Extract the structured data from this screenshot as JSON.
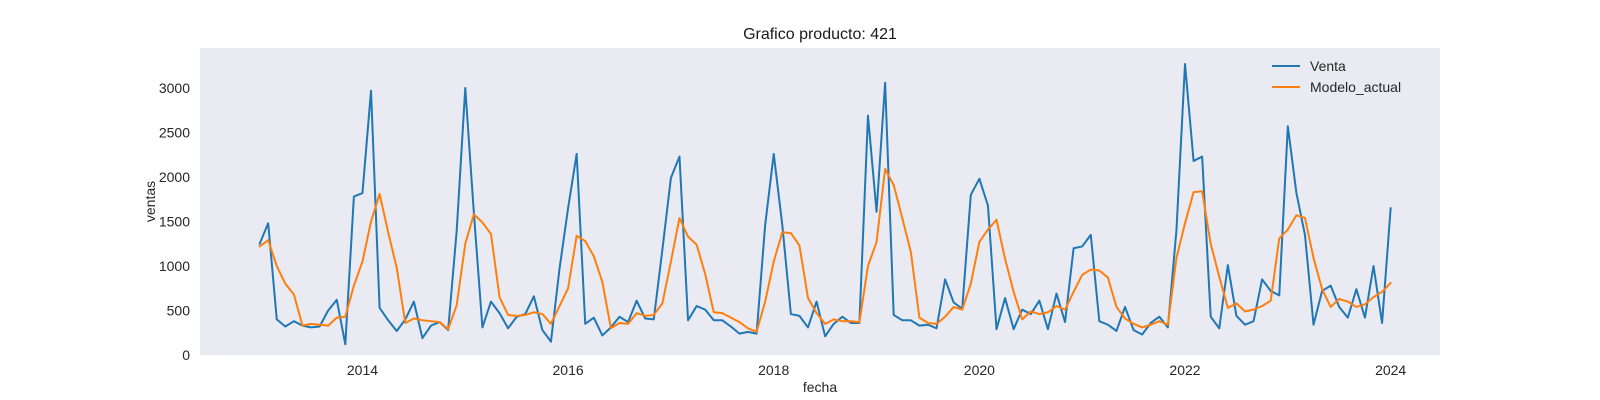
{
  "chart_data": {
    "type": "line",
    "title": "Grafico producto: 421",
    "xlabel": "fecha",
    "ylabel": "ventas",
    "xlim": [
      2012.42,
      2024.48
    ],
    "ylim": [
      0,
      3450
    ],
    "x_ticks": [
      2014,
      2016,
      2018,
      2020,
      2022,
      2024
    ],
    "y_ticks": [
      0,
      500,
      1000,
      1500,
      2000,
      2500,
      3000
    ],
    "grid": false,
    "background": "#eaeaf2",
    "legend": {
      "position": "top-right",
      "entries": [
        "Venta",
        "Modelo_actual"
      ]
    },
    "x_start": "2013-01",
    "x_frequency": "monthly",
    "series": [
      {
        "name": "Venta",
        "color": "#1f77b4",
        "values": [
          1250,
          1480,
          400,
          320,
          380,
          330,
          310,
          320,
          500,
          620,
          120,
          1780,
          1820,
          2970,
          530,
          390,
          270,
          400,
          600,
          190,
          330,
          370,
          280,
          1400,
          3000,
          1600,
          310,
          600,
          470,
          300,
          430,
          460,
          660,
          280,
          150,
          970,
          1650,
          2260,
          350,
          420,
          220,
          310,
          430,
          370,
          610,
          410,
          400,
          1180,
          1990,
          2230,
          390,
          550,
          510,
          390,
          390,
          320,
          240,
          260,
          240,
          1460,
          2260,
          1460,
          460,
          440,
          310,
          600,
          210,
          350,
          430,
          360,
          360,
          2690,
          1610,
          3060,
          450,
          390,
          390,
          330,
          340,
          300,
          850,
          590,
          520,
          1800,
          1980,
          1680,
          290,
          640,
          290,
          510,
          460,
          610,
          290,
          690,
          370,
          1200,
          1220,
          1350,
          380,
          340,
          270,
          540,
          280,
          230,
          360,
          430,
          310,
          1400,
          3270,
          2180,
          2230,
          430,
          300,
          1010,
          440,
          340,
          380,
          850,
          720,
          670,
          2570,
          1820,
          1350,
          340,
          720,
          780,
          540,
          420,
          740,
          420,
          1000,
          360,
          1650
        ]
      },
      {
        "name": "Modelo_actual",
        "color": "#ff7f0e",
        "values": [
          1220,
          1290,
          1000,
          800,
          680,
          330,
          350,
          340,
          330,
          420,
          430,
          780,
          1050,
          1500,
          1810,
          1380,
          980,
          360,
          410,
          390,
          380,
          370,
          290,
          560,
          1250,
          1580,
          1490,
          1360,
          650,
          450,
          440,
          450,
          480,
          460,
          350,
          550,
          750,
          1340,
          1280,
          1110,
          820,
          300,
          360,
          350,
          470,
          440,
          450,
          580,
          1050,
          1540,
          1330,
          1240,
          910,
          480,
          470,
          420,
          370,
          300,
          260,
          600,
          1050,
          1380,
          1370,
          1230,
          640,
          470,
          350,
          400,
          380,
          380,
          370,
          1000,
          1270,
          2090,
          1910,
          1540,
          1160,
          420,
          360,
          350,
          430,
          540,
          510,
          800,
          1270,
          1410,
          1520,
          1080,
          710,
          400,
          490,
          460,
          480,
          550,
          510,
          710,
          900,
          960,
          950,
          870,
          540,
          410,
          350,
          310,
          340,
          380,
          340,
          1090,
          1480,
          1830,
          1840,
          1250,
          880,
          530,
          580,
          490,
          510,
          550,
          610,
          1310,
          1410,
          1570,
          1540,
          1090,
          740,
          540,
          630,
          600,
          540,
          570,
          650,
          710,
          810
        ]
      }
    ]
  }
}
